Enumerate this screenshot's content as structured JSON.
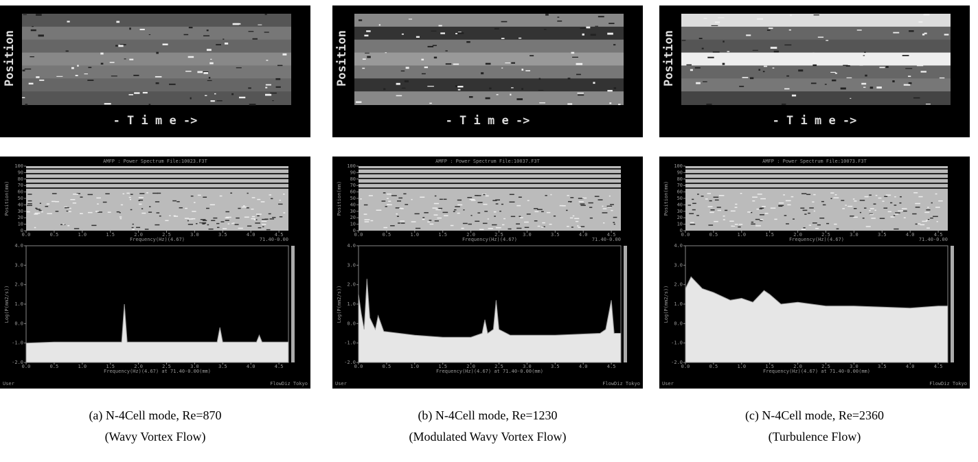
{
  "panels": [
    {
      "time_plot": {
        "y_label": "Position",
        "x_label": "- T i m e ->"
      },
      "spectrum": {
        "title": "AMFP : Power Spectrum  File:10023.F3T",
        "map_y_label": "Position(mm)",
        "map_x_label": "Frequency(Hz)(4.67)",
        "map_range": "71.40-0.00",
        "y_label": "Log(P(mm2/s))",
        "x_label": "Frequency(Hz)(4.67) at 71.40-0.00(mm)",
        "footer_left": "User",
        "footer_right": "FlowDiz Tokyo",
        "x": [
          0,
          0.5,
          1.0,
          1.5,
          1.7,
          1.75,
          1.8,
          2.5,
          3.0,
          3.4,
          3.45,
          3.5,
          4.1,
          4.15,
          4.2,
          4.67
        ],
        "values": [
          -1.0,
          -0.95,
          -0.95,
          -0.95,
          -0.95,
          1.0,
          -0.95,
          -0.95,
          -0.95,
          -0.95,
          -0.2,
          -0.95,
          -0.95,
          -0.6,
          -0.95,
          -0.95
        ]
      },
      "caption": [
        "(a) N-4Cell mode, Re=870",
        "(Wavy Vortex Flow)"
      ]
    },
    {
      "time_plot": {
        "y_label": "Position",
        "x_label": "- T i m e ->"
      },
      "spectrum": {
        "title": "AMFP : Power Spectrum  File:10037.F3T",
        "map_y_label": "Position(mm)",
        "map_x_label": "Frequency(Hz)(4.67)",
        "map_range": "71.40-0.00",
        "y_label": "Log(P(mm2/s))",
        "x_label": "Frequency(Hz)(4.67) at 71.40-0.00(mm)",
        "footer_left": "User",
        "footer_right": "FlowDiz Tokyo",
        "x": [
          0,
          0.05,
          0.1,
          0.15,
          0.2,
          0.3,
          0.35,
          0.45,
          1.0,
          1.5,
          2.0,
          2.2,
          2.25,
          2.3,
          2.4,
          2.45,
          2.5,
          2.7,
          3.5,
          4.3,
          4.4,
          4.5,
          4.55,
          4.67
        ],
        "values": [
          1.5,
          0.5,
          -0.3,
          2.3,
          0.3,
          -0.3,
          0.4,
          -0.4,
          -0.6,
          -0.7,
          -0.7,
          -0.5,
          0.2,
          -0.5,
          -0.3,
          1.2,
          -0.3,
          -0.6,
          -0.6,
          -0.5,
          -0.3,
          1.2,
          -0.5,
          -0.5
        ]
      },
      "caption": [
        "(b) N-4Cell mode, Re=1230",
        "(Modulated Wavy Vortex Flow)"
      ]
    },
    {
      "time_plot": {
        "y_label": "Position",
        "x_label": "- T i m e ->"
      },
      "spectrum": {
        "title": "AMFP : Power Spectrum  File:10073.F3T",
        "map_y_label": "Position(mm)",
        "map_x_label": "Frequency(Hz)(4.67)",
        "map_range": "71.40-0.00",
        "y_label": "Log(P(mm2/s))",
        "x_label": "Frequency(Hz)(4.67) at 71.40-0.00(mm)",
        "footer_left": "User",
        "footer_right": "FlowDiz Tokyo",
        "x": [
          0,
          0.1,
          0.3,
          0.5,
          0.8,
          1.0,
          1.2,
          1.4,
          1.5,
          1.7,
          2.0,
          2.5,
          3.0,
          3.5,
          4.0,
          4.5,
          4.67
        ],
        "values": [
          1.8,
          2.4,
          1.8,
          1.6,
          1.2,
          1.3,
          1.1,
          1.7,
          1.5,
          1.0,
          1.1,
          0.9,
          0.9,
          0.85,
          0.8,
          0.9,
          0.9
        ]
      },
      "caption": [
        "(c) N-4Cell mode, Re=2360",
        "(Turbulence Flow)"
      ]
    }
  ],
  "axes": {
    "xlim": [
      0,
      4.67
    ],
    "xticks": [
      {
        "value": 0,
        "label": "0.0"
      },
      {
        "value": 0.5,
        "label": "0.5"
      },
      {
        "value": 1,
        "label": "1.0"
      },
      {
        "value": 1.5,
        "label": "1.5"
      },
      {
        "value": 2,
        "label": "2.0"
      },
      {
        "value": 2.5,
        "label": "2.5"
      },
      {
        "value": 3,
        "label": "3.0"
      },
      {
        "value": 3.5,
        "label": "3.5"
      },
      {
        "value": 4,
        "label": "4.0"
      },
      {
        "value": 4.5,
        "label": "4.5"
      }
    ],
    "position_lim": [
      0,
      100
    ],
    "position_ticks": [
      100,
      90,
      80,
      70,
      60,
      50,
      40,
      30,
      20,
      10,
      0
    ],
    "ylim": [
      -2,
      4
    ],
    "yticks": [
      {
        "value": 4,
        "label": "4.0"
      },
      {
        "value": 3,
        "label": "3.0"
      },
      {
        "value": 2,
        "label": "2.0"
      },
      {
        "value": 1,
        "label": "1.0"
      },
      {
        "value": 0,
        "label": "0.0"
      },
      {
        "value": -1,
        "label": "-1.0"
      },
      {
        "value": -2,
        "label": "-2.0"
      }
    ]
  }
}
